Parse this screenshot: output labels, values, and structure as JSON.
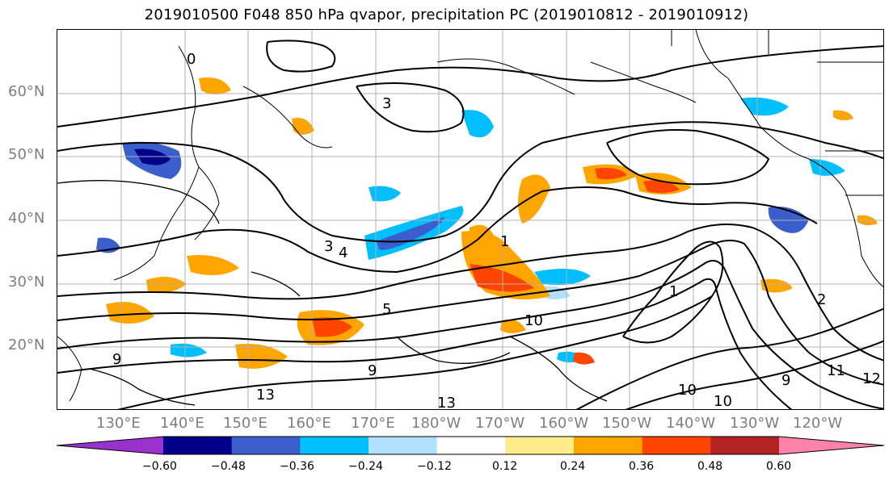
{
  "title": "2019010500 F048 850 hPa qvapor, precipitation PC (2019010812 - 2019010912)",
  "map": {
    "lat_labels": [
      "60°N",
      "50°N",
      "40°N",
      "30°N",
      "20°N"
    ],
    "lon_labels": [
      "130°E",
      "140°E",
      "150°E",
      "160°E",
      "170°E",
      "180°W",
      "170°W",
      "160°W",
      "150°W",
      "140°W",
      "130°W",
      "120°W"
    ],
    "contour_labels": [
      "0",
      "3",
      "3",
      "4",
      "5",
      "1",
      "10",
      "9",
      "10",
      "10",
      "11",
      "13",
      "2",
      "9",
      "12",
      "1",
      "9",
      "13"
    ]
  },
  "colorbar": {
    "colors": [
      "#9932cc",
      "#00008b",
      "#3a5fcd",
      "#00bfff",
      "#b0e2ff",
      "#ffffff",
      "#ffec8b",
      "#ffa500",
      "#ff4500",
      "#b22222",
      "#ff82ab"
    ],
    "ticks": [
      "−0.60",
      "−0.48",
      "−0.36",
      "−0.24",
      "−0.12",
      "0.12",
      "0.24",
      "0.36",
      "0.48",
      "0.60"
    ]
  }
}
